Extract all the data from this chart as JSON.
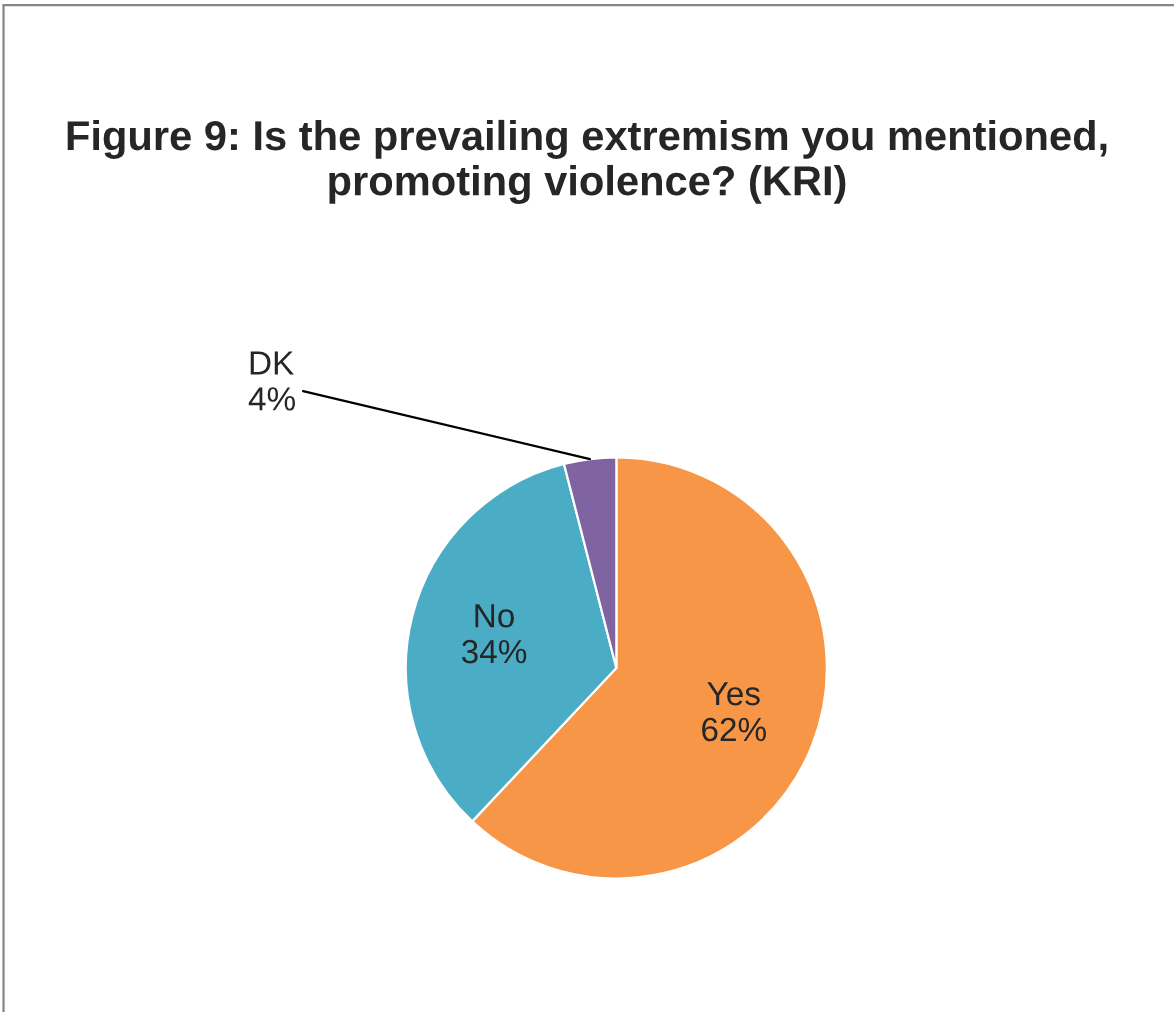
{
  "chart_data": {
    "type": "pie",
    "title": "Figure 9: Is the prevailing extremism you mentioned, promoting violence? (KRI)",
    "categories": [
      "Yes",
      "No",
      "DK"
    ],
    "values": [
      62,
      34,
      4
    ],
    "value_labels": [
      "62%",
      "34%",
      "4%"
    ],
    "colors": [
      "#f79646",
      "#4bacc6",
      "#8064a2"
    ],
    "legend": false
  }
}
